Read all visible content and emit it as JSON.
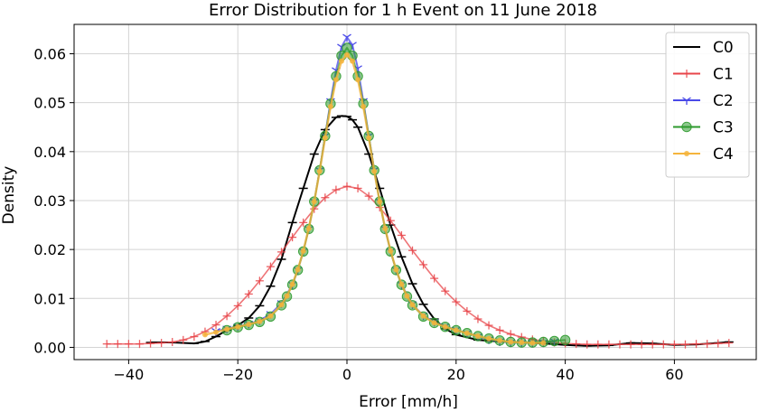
{
  "chart_data": {
    "type": "line",
    "title": "Error Distribution for 1 h Event on 11 June 2018",
    "xlabel": "Error [mm/h]",
    "ylabel": "Density",
    "xlim": [
      -50,
      75
    ],
    "ylim": [
      -0.0025,
      0.066
    ],
    "xticks": [
      -40,
      -20,
      0,
      20,
      40,
      60
    ],
    "xtick_labels": [
      "−40",
      "−20",
      "0",
      "20",
      "40",
      "60"
    ],
    "yticks": [
      0.0,
      0.01,
      0.02,
      0.03,
      0.04,
      0.05,
      0.06
    ],
    "ytick_labels": [
      "0.00",
      "0.01",
      "0.02",
      "0.03",
      "0.04",
      "0.05",
      "0.06"
    ],
    "grid": true,
    "legend_position": "top-right",
    "series": [
      {
        "name": "C0",
        "color": "#000000",
        "marker": "hline",
        "x": [
          -36,
          -32,
          -28,
          -26,
          -24,
          -22,
          -20,
          -18,
          -16,
          -14,
          -12,
          -10,
          -8,
          -6,
          -4,
          -2,
          -1,
          0,
          1,
          2,
          4,
          6,
          8,
          10,
          12,
          14,
          16,
          18,
          20,
          24,
          28,
          32,
          36,
          40,
          44,
          48,
          52,
          56,
          60,
          64,
          68,
          70
        ],
        "y": [
          0.001,
          0.001,
          0.0008,
          0.0012,
          0.0022,
          0.0035,
          0.0045,
          0.006,
          0.0085,
          0.0125,
          0.018,
          0.0255,
          0.0325,
          0.0395,
          0.0445,
          0.047,
          0.0473,
          0.0472,
          0.0465,
          0.045,
          0.0395,
          0.0325,
          0.025,
          0.0185,
          0.013,
          0.0088,
          0.0058,
          0.0038,
          0.0026,
          0.0015,
          0.0012,
          0.001,
          0.0008,
          0.0005,
          0.0003,
          0.0004,
          0.0009,
          0.0008,
          0.0005,
          0.0006,
          0.0009,
          0.0011
        ]
      },
      {
        "name": "C1",
        "color": "#e8454a",
        "marker": "plus",
        "x": [
          -44,
          -42,
          -40,
          -38,
          -36,
          -34,
          -32,
          -30,
          -28,
          -26,
          -24,
          -22,
          -20,
          -18,
          -16,
          -14,
          -12,
          -10,
          -8,
          -6,
          -4,
          -2,
          0,
          2,
          4,
          6,
          8,
          10,
          12,
          14,
          16,
          18,
          20,
          22,
          24,
          26,
          28,
          30,
          32,
          34,
          36,
          38,
          40,
          42,
          44,
          46,
          48,
          50,
          52,
          54,
          56,
          58,
          60,
          62,
          64,
          66,
          68,
          70
        ],
        "y": [
          0.0007,
          0.0007,
          0.0007,
          0.0007,
          0.0008,
          0.0009,
          0.0011,
          0.0015,
          0.0022,
          0.0032,
          0.0046,
          0.0064,
          0.0085,
          0.0109,
          0.0136,
          0.0165,
          0.0195,
          0.0225,
          0.0255,
          0.0283,
          0.0306,
          0.0322,
          0.0329,
          0.0325,
          0.0309,
          0.0286,
          0.0259,
          0.0229,
          0.0198,
          0.0169,
          0.0141,
          0.0115,
          0.0093,
          0.0074,
          0.0058,
          0.0045,
          0.0035,
          0.0027,
          0.0021,
          0.0016,
          0.0013,
          0.001,
          0.0008,
          0.0007,
          0.0006,
          0.0006,
          0.0006,
          0.0006,
          0.0006,
          0.0006,
          0.0006,
          0.0006,
          0.0006,
          0.0006,
          0.0007,
          0.0007,
          0.0008,
          0.0009
        ]
      },
      {
        "name": "C2",
        "color": "#4a4ae8",
        "marker": "tri",
        "x": [
          -24,
          -22,
          -20,
          -18,
          -16,
          -14,
          -12,
          -10,
          -9,
          -8,
          -7,
          -6,
          -5,
          -4,
          -3,
          -2,
          -1,
          0,
          1,
          2,
          3,
          4,
          5,
          6,
          7,
          8,
          9,
          10,
          12,
          14,
          16,
          18,
          20,
          22,
          24,
          26,
          28,
          30,
          32,
          34,
          36,
          38
        ],
        "y": [
          0.0033,
          0.0038,
          0.0043,
          0.0048,
          0.0055,
          0.0068,
          0.009,
          0.0128,
          0.0158,
          0.0196,
          0.0242,
          0.0298,
          0.0362,
          0.0432,
          0.0503,
          0.0566,
          0.0614,
          0.0634,
          0.0618,
          0.057,
          0.0503,
          0.0432,
          0.0362,
          0.0298,
          0.0242,
          0.0196,
          0.0158,
          0.0128,
          0.0088,
          0.0065,
          0.0052,
          0.0043,
          0.0036,
          0.0029,
          0.0022,
          0.0016,
          0.0012,
          0.001,
          0.0009,
          0.0009,
          0.001,
          0.0012
        ]
      },
      {
        "name": "C3",
        "color": "#2e9a2e",
        "marker": "circle",
        "x": [
          -22,
          -20,
          -18,
          -16,
          -14,
          -12,
          -11,
          -10,
          -9,
          -8,
          -7,
          -6,
          -5,
          -4,
          -3,
          -2,
          -1,
          0,
          1,
          2,
          3,
          4,
          5,
          6,
          7,
          8,
          9,
          10,
          11,
          12,
          14,
          16,
          18,
          20,
          22,
          24,
          26,
          28,
          30,
          32,
          34,
          36,
          38,
          40
        ],
        "y": [
          0.0035,
          0.0041,
          0.0046,
          0.0052,
          0.0063,
          0.0086,
          0.0104,
          0.0128,
          0.0158,
          0.0196,
          0.0242,
          0.0298,
          0.0362,
          0.0432,
          0.0498,
          0.0554,
          0.0596,
          0.0612,
          0.0596,
          0.0554,
          0.0498,
          0.0432,
          0.0362,
          0.0298,
          0.0242,
          0.0196,
          0.0158,
          0.0128,
          0.0104,
          0.0086,
          0.0063,
          0.005,
          0.0042,
          0.0035,
          0.0029,
          0.0023,
          0.0018,
          0.0014,
          0.0011,
          0.001,
          0.001,
          0.0011,
          0.0013,
          0.0015
        ]
      },
      {
        "name": "C4",
        "color": "#f5b43c",
        "marker": "dot",
        "x": [
          -26,
          -24,
          -22,
          -20,
          -18,
          -16,
          -14,
          -12,
          -11,
          -10,
          -9,
          -8,
          -7,
          -6,
          -5,
          -4,
          -3,
          -2,
          -1,
          0,
          1,
          2,
          3,
          4,
          5,
          6,
          7,
          8,
          9,
          10,
          11,
          12,
          14,
          16,
          18,
          20,
          22,
          24,
          26,
          28,
          30,
          32,
          34,
          36
        ],
        "y": [
          0.0026,
          0.0031,
          0.0037,
          0.0042,
          0.0047,
          0.0053,
          0.0064,
          0.0087,
          0.0105,
          0.0129,
          0.0159,
          0.0197,
          0.0243,
          0.0298,
          0.036,
          0.0428,
          0.0492,
          0.0547,
          0.0585,
          0.0598,
          0.0585,
          0.0547,
          0.0492,
          0.0428,
          0.036,
          0.0298,
          0.0243,
          0.0197,
          0.0159,
          0.0129,
          0.0105,
          0.0087,
          0.0064,
          0.005,
          0.0042,
          0.0035,
          0.0029,
          0.0023,
          0.0018,
          0.0014,
          0.0011,
          0.001,
          0.0009,
          0.0009
        ]
      }
    ]
  }
}
